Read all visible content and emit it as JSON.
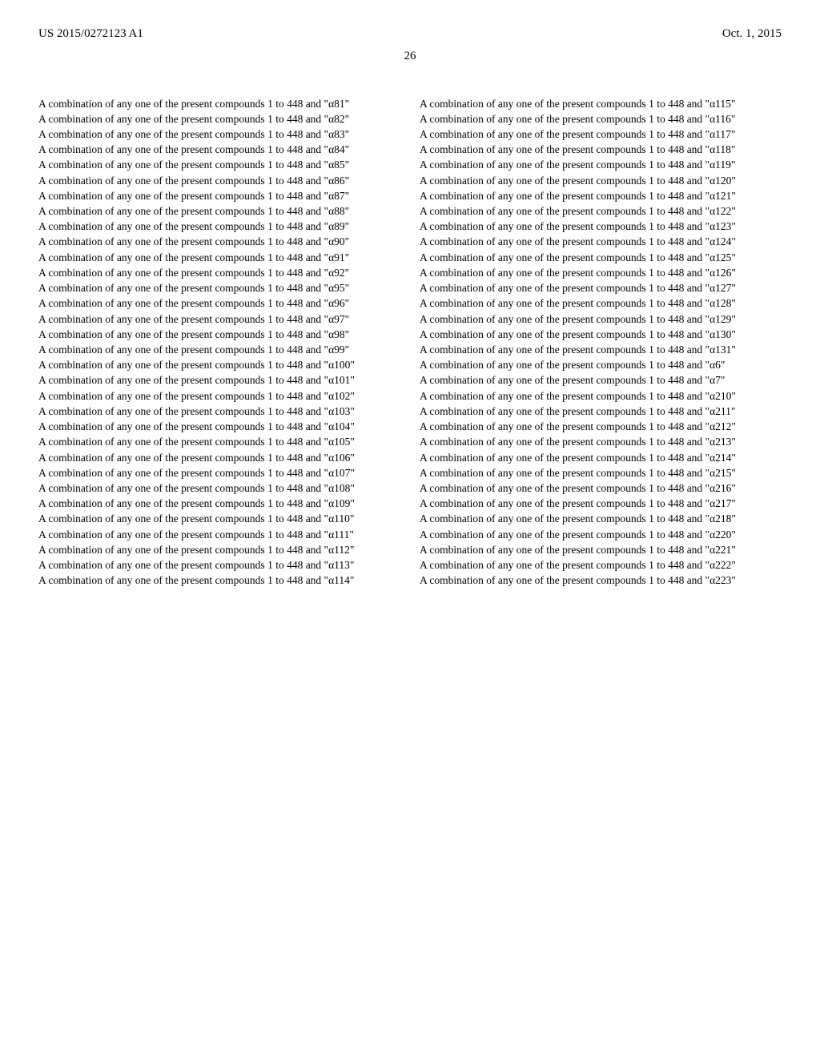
{
  "header": {
    "left": "US 2015/0272123 A1",
    "right": "Oct. 1, 2015"
  },
  "page_number": "26",
  "combination_text": "A combination of any one of the present compounds 1 to 448 and",
  "left_alphas": [
    "α81",
    "α82",
    "α83",
    "α84",
    "α85",
    "α86",
    "α87",
    "α88",
    "α89",
    "α90",
    "α91",
    "α92",
    "α95",
    "α96",
    "α97",
    "α98",
    "α99",
    "α100",
    "α101",
    "α102",
    "α103",
    "α104",
    "α105",
    "α106",
    "α107",
    "α108",
    "α109",
    "α110",
    "α111",
    "α112",
    "α113",
    "α114"
  ],
  "right_alphas": [
    "α115",
    "α116",
    "α117",
    "α118",
    "α119",
    "α120",
    "α121",
    "α122",
    "α123",
    "α124",
    "α125",
    "α126",
    "α127",
    "α128",
    "α129",
    "α130",
    "α131",
    "α6",
    "α7",
    "α210",
    "α211",
    "α212",
    "α213",
    "α214",
    "α215",
    "α216",
    "α217",
    "α218",
    "α220",
    "α221",
    "α222",
    "α223"
  ]
}
